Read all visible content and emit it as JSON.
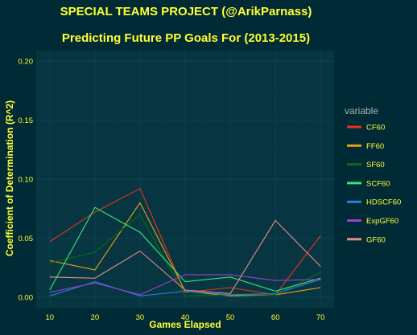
{
  "chart_data": {
    "type": "line",
    "title": "SPECIAL TEAMS PROJECT (@ArikParnass)",
    "subtitle": "Predicting Future PP Goals For (2013-2015)",
    "xlabel": "Games Elapsed",
    "ylabel": "Coefficient of Determination (R^2)",
    "x": [
      10,
      20,
      30,
      40,
      50,
      60,
      70
    ],
    "xlim": [
      7,
      73
    ],
    "ylim": [
      -0.009,
      0.209
    ],
    "xticks": [
      10,
      20,
      30,
      40,
      50,
      60,
      70
    ],
    "xtick_labels": [
      "10",
      "20",
      "30",
      "40",
      "50",
      "60",
      "70"
    ],
    "yticks": [
      0.0,
      0.05,
      0.1,
      0.15,
      0.2
    ],
    "ytick_labels": [
      "0.00",
      "0.05",
      "0.10",
      "0.15",
      "0.20"
    ],
    "grid": true,
    "legend_title": "variable",
    "legend_position": "right",
    "series": [
      {
        "name": "CF60",
        "color": "#e8331c",
        "values": [
          0.047,
          0.072,
          0.092,
          0.004,
          0.008,
          0.002,
          0.052
        ]
      },
      {
        "name": "FF60",
        "color": "#e6a31c",
        "values": [
          0.031,
          0.023,
          0.08,
          0.005,
          0.001,
          0.002,
          0.008
        ]
      },
      {
        "name": "SF60",
        "color": "#0d6b0d",
        "values": [
          0.029,
          0.038,
          0.07,
          0.001,
          0.002,
          0.002,
          0.021
        ]
      },
      {
        "name": "SCF60",
        "color": "#2eeb77",
        "values": [
          0.006,
          0.076,
          0.055,
          0.013,
          0.017,
          0.005,
          0.016
        ]
      },
      {
        "name": "HDSCF60",
        "color": "#2b7fd9",
        "values": [
          0.001,
          0.013,
          0.001,
          0.005,
          0.002,
          0.003,
          0.015
        ]
      },
      {
        "name": "ExpGF60",
        "color": "#a03ccf",
        "values": [
          0.004,
          0.012,
          0.002,
          0.019,
          0.019,
          0.014,
          0.015
        ]
      },
      {
        "name": "GF60",
        "color": "#e48a8a",
        "values": [
          0.017,
          0.016,
          0.039,
          0.006,
          0.003,
          0.065,
          0.026
        ]
      }
    ]
  }
}
